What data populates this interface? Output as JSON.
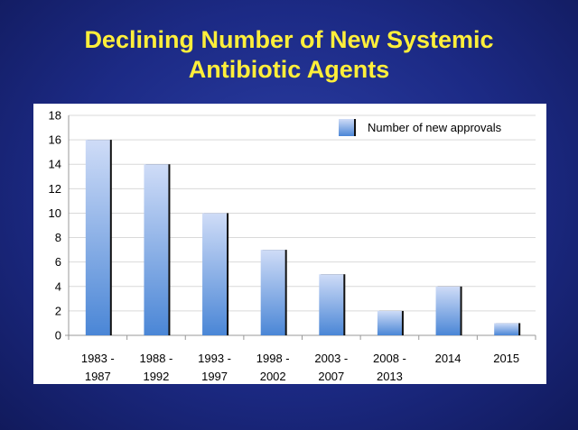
{
  "slide": {
    "title_line1": "Declining Number of New Systemic",
    "title_line2": "Antibiotic Agents"
  },
  "chart_data": {
    "type": "bar",
    "categories": [
      [
        "1983 -",
        "1987"
      ],
      [
        "1988 -",
        "1992"
      ],
      [
        "1993 -",
        "1997"
      ],
      [
        "1998 -",
        "2002"
      ],
      [
        "2003 -",
        "2007"
      ],
      [
        "2008 -",
        "2013"
      ],
      [
        "2014"
      ],
      [
        "2015"
      ]
    ],
    "series": [
      {
        "name": "Number of new approvals",
        "values": [
          16,
          14,
          10,
          7,
          5,
          2,
          4,
          1
        ]
      }
    ],
    "ylim": [
      0,
      18
    ],
    "yticks": [
      0,
      2,
      4,
      6,
      8,
      10,
      12,
      14,
      16,
      18
    ],
    "grid": true,
    "legend": "top-right",
    "colors": {
      "bar_top": "#cfdcf7",
      "bar_bottom": "#4a86d6",
      "bar_shadow": "#111111",
      "grid": "#d9d9d9"
    }
  }
}
